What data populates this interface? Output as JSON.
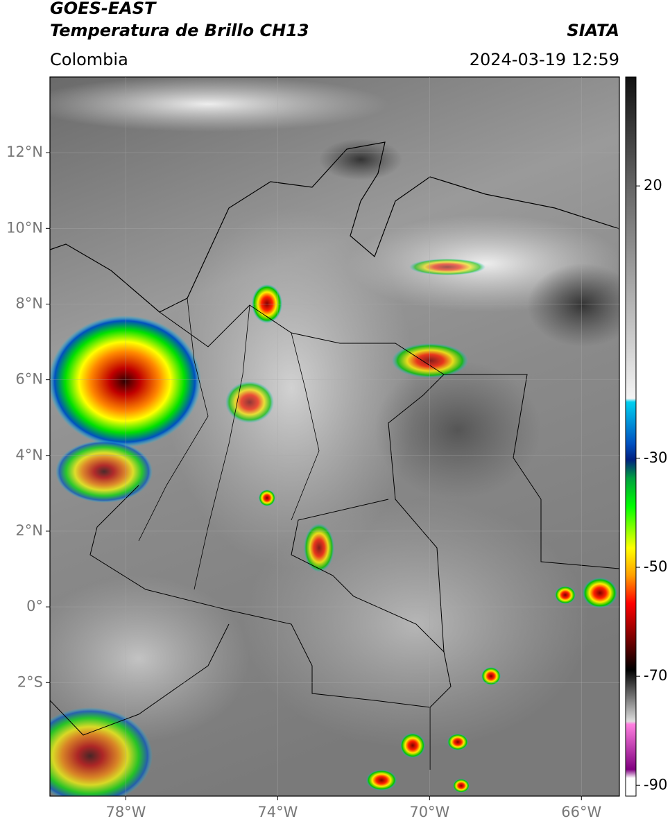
{
  "header": {
    "title": "GOES-EAST",
    "subtitle": "Temperatura de Brillo CH13",
    "source": "SIATA",
    "region": "Colombia",
    "datetime": "2024-03-19 12:59"
  },
  "map": {
    "lonlim": [
      -80,
      -65
    ],
    "latlim": [
      -5,
      14
    ],
    "lonticks": [
      {
        "value": -78,
        "label": "78°W"
      },
      {
        "value": -74,
        "label": "74°W"
      },
      {
        "value": -70,
        "label": "70°W"
      },
      {
        "value": -66,
        "label": "66°W"
      }
    ],
    "latticks": [
      {
        "value": 12,
        "label": "12°N"
      },
      {
        "value": 10,
        "label": "10°N"
      },
      {
        "value": 8,
        "label": "8°N"
      },
      {
        "value": 6,
        "label": "6°N"
      },
      {
        "value": 4,
        "label": "4°N"
      },
      {
        "value": 2,
        "label": "2°N"
      },
      {
        "value": 0,
        "label": "0°"
      },
      {
        "value": -2,
        "label": "2°S"
      }
    ],
    "grid": true
  },
  "colorbar": {
    "clim": [
      -92,
      40
    ],
    "ticks": [
      20,
      -30,
      -50,
      -70,
      -90
    ]
  }
}
